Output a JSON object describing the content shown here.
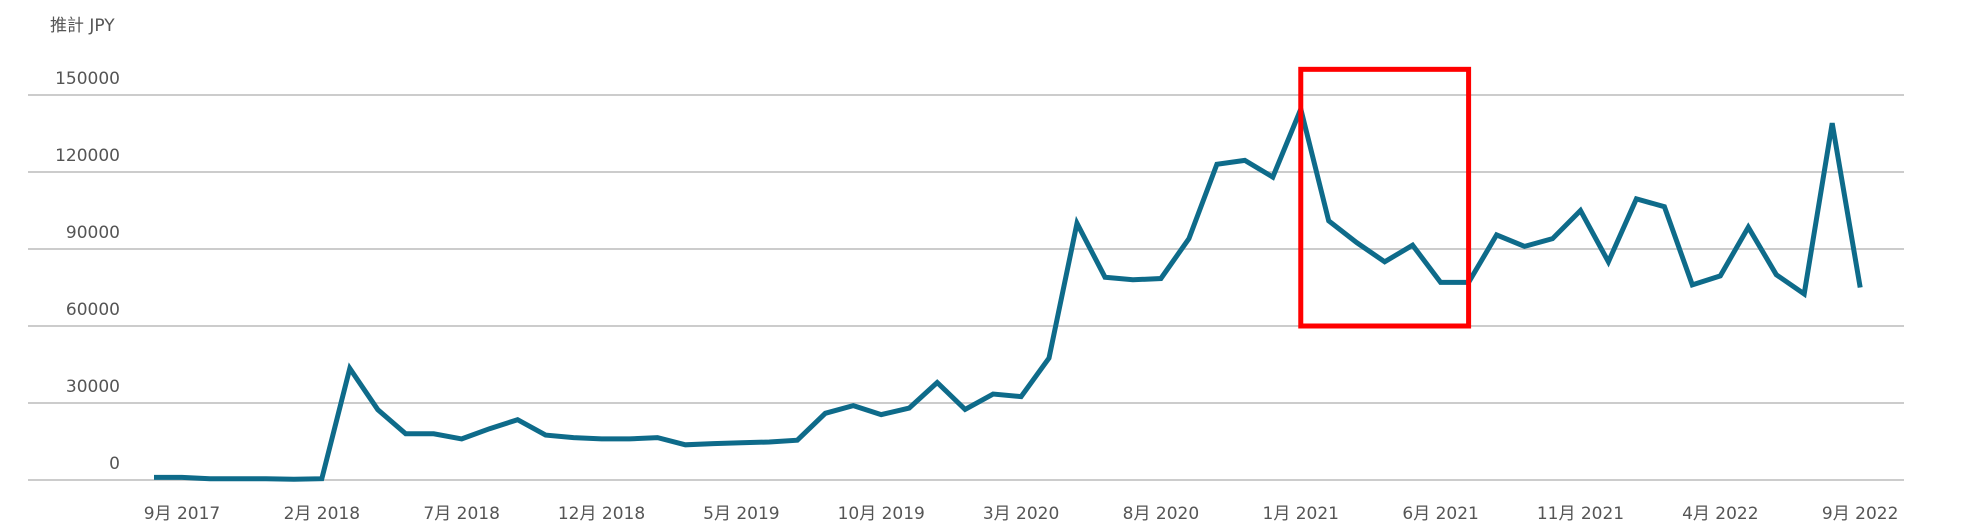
{
  "chart_data": {
    "type": "line",
    "title": "",
    "ylabel": "推計 JPY",
    "xlabel": "",
    "ylim": [
      0,
      150000
    ],
    "yticks": [
      "0",
      "30000",
      "60000",
      "90000",
      "120000",
      "150000"
    ],
    "ytick_values": [
      0,
      30000,
      60000,
      90000,
      120000,
      150000
    ],
    "grid": true,
    "x": [
      "2017-08",
      "2017-09",
      "2017-10",
      "2017-11",
      "2017-12",
      "2018-01",
      "2018-02",
      "2018-03",
      "2018-04",
      "2018-05",
      "2018-06",
      "2018-07",
      "2018-08",
      "2018-09",
      "2018-10",
      "2018-11",
      "2018-12",
      "2019-01",
      "2019-02",
      "2019-03",
      "2019-04",
      "2019-05",
      "2019-06",
      "2019-07",
      "2019-08",
      "2019-09",
      "2019-10",
      "2019-11",
      "2019-12",
      "2020-01",
      "2020-02",
      "2020-03",
      "2020-04",
      "2020-05",
      "2020-06",
      "2020-07",
      "2020-08",
      "2020-09",
      "2020-10",
      "2020-11",
      "2020-12",
      "2021-01",
      "2021-02",
      "2021-03",
      "2021-04",
      "2021-05",
      "2021-06",
      "2021-07",
      "2021-08",
      "2021-09",
      "2021-10",
      "2021-11",
      "2021-12",
      "2022-01",
      "2022-02",
      "2022-03",
      "2022-04",
      "2022-05",
      "2022-06",
      "2022-07",
      "2022-08",
      "2022-09"
    ],
    "xticks": [
      {
        "index": 1,
        "label": "9月 2017"
      },
      {
        "index": 6,
        "label": "2月 2018"
      },
      {
        "index": 11,
        "label": "7月 2018"
      },
      {
        "index": 16,
        "label": "12月 2018"
      },
      {
        "index": 21,
        "label": "5月 2019"
      },
      {
        "index": 26,
        "label": "10月 2019"
      },
      {
        "index": 31,
        "label": "3月 2020"
      },
      {
        "index": 36,
        "label": "8月 2020"
      },
      {
        "index": 41,
        "label": "1月 2021"
      },
      {
        "index": 46,
        "label": "6月 2021"
      },
      {
        "index": 51,
        "label": "11月 2021"
      },
      {
        "index": 56,
        "label": "4月 2022"
      },
      {
        "index": 61,
        "label": "9月 2022"
      }
    ],
    "series": [
      {
        "name": "推計 JPY",
        "color": "#0e6b8a",
        "values": [
          1000,
          1000,
          500,
          500,
          500,
          300,
          500,
          43500,
          27400,
          18000,
          18000,
          16000,
          20000,
          23500,
          17500,
          16500,
          16000,
          16000,
          16500,
          13700,
          14200,
          14500,
          14800,
          15500,
          26000,
          29000,
          25500,
          28000,
          38000,
          27500,
          33500,
          32500,
          47500,
          100000,
          79000,
          78000,
          78500,
          94000,
          123000,
          124500,
          118000,
          144500,
          101000,
          92500,
          85000,
          91500,
          77000,
          77000,
          95500,
          91000,
          94000,
          105000,
          85000,
          109500,
          106500,
          76000,
          79500,
          98500,
          80000,
          72500,
          139000,
          75000
        ]
      }
    ],
    "annotations": [
      {
        "type": "highlight-box",
        "color": "#ff0000",
        "x_from_index": 41,
        "x_to_index": 47,
        "y_from": 60000,
        "y_to": 160000
      }
    ]
  }
}
